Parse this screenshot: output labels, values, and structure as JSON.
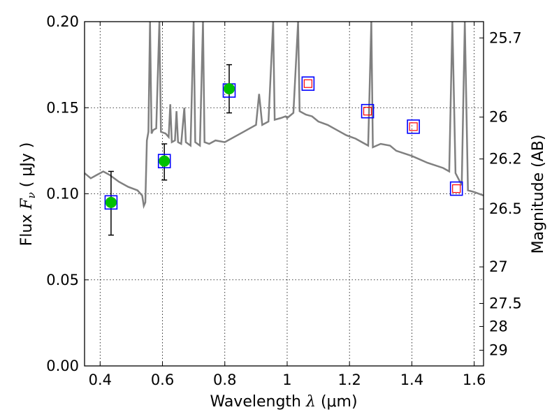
{
  "chart_data": {
    "type": "scatter",
    "xlabel_prefix": "Wavelength",
    "xlabel_symbol": "λ",
    "xlabel_unit": "(μm)",
    "ylabel_prefix": "Flux",
    "ylabel_symbol": "F",
    "ylabel_subscript": "ν",
    "ylabel_unit": "( μJy )",
    "y2label": "Magnitude (AB)",
    "xlim": [
      0.35,
      1.63
    ],
    "ylim": [
      0.0,
      0.2
    ],
    "grid": true,
    "x_ticks": [
      0.4,
      0.6,
      0.8,
      1.0,
      1.2,
      1.4,
      1.6
    ],
    "x_tick_labels": [
      "0.4",
      "0.6",
      "0.8",
      "1",
      "1.2",
      "1.4",
      "1.6"
    ],
    "y_ticks": [
      0.0,
      0.05,
      0.1,
      0.15,
      0.2
    ],
    "y_tick_labels": [
      "0.00",
      "0.05",
      "0.10",
      "0.15",
      "0.20"
    ],
    "y2_ticks": [
      {
        "label": "25.7",
        "mag": 25.7
      },
      {
        "label": "26",
        "mag": 26.0
      },
      {
        "label": "26.2",
        "mag": 26.2
      },
      {
        "label": "26.5",
        "mag": 26.5
      },
      {
        "label": "27",
        "mag": 27.0
      },
      {
        "label": "27.5",
        "mag": 27.5
      },
      {
        "label": "28",
        "mag": 28.0
      },
      {
        "label": "29",
        "mag": 29.0
      }
    ],
    "colors": {
      "model": "#808080",
      "observed": "#00c000",
      "synthetic": "#0000ff",
      "predicted": "#ff0000",
      "errorbar": "#000000"
    },
    "observed_points": [
      {
        "x": 0.435,
        "y": 0.095,
        "yerr_low": 0.076,
        "yerr_high": 0.113
      },
      {
        "x": 0.606,
        "y": 0.119,
        "yerr_low": 0.108,
        "yerr_high": 0.129
      },
      {
        "x": 0.814,
        "y": 0.161,
        "yerr_low": 0.147,
        "yerr_high": 0.175
      }
    ],
    "synthetic_points": [
      {
        "x": 0.435,
        "y": 0.095
      },
      {
        "x": 0.606,
        "y": 0.119
      },
      {
        "x": 0.814,
        "y": 0.16
      },
      {
        "x": 1.067,
        "y": 0.164
      },
      {
        "x": 1.258,
        "y": 0.148
      },
      {
        "x": 1.405,
        "y": 0.139
      },
      {
        "x": 1.543,
        "y": 0.103
      }
    ],
    "predicted_points": [
      {
        "x": 1.067,
        "y": 0.164
      },
      {
        "x": 1.258,
        "y": 0.148
      },
      {
        "x": 1.405,
        "y": 0.139
      },
      {
        "x": 1.543,
        "y": 0.103
      }
    ],
    "model_spectrum": [
      [
        0.35,
        0.112
      ],
      [
        0.37,
        0.109
      ],
      [
        0.39,
        0.111
      ],
      [
        0.41,
        0.113
      ],
      [
        0.43,
        0.111
      ],
      [
        0.46,
        0.107
      ],
      [
        0.49,
        0.104
      ],
      [
        0.52,
        0.102
      ],
      [
        0.535,
        0.099
      ],
      [
        0.54,
        0.093
      ],
      [
        0.545,
        0.095
      ],
      [
        0.55,
        0.131
      ],
      [
        0.555,
        0.136
      ],
      [
        0.56,
        0.2
      ],
      [
        0.565,
        0.135
      ],
      [
        0.57,
        0.137
      ],
      [
        0.58,
        0.138
      ],
      [
        0.59,
        0.2
      ],
      [
        0.595,
        0.136
      ],
      [
        0.61,
        0.135
      ],
      [
        0.62,
        0.133
      ],
      [
        0.625,
        0.152
      ],
      [
        0.63,
        0.13
      ],
      [
        0.64,
        0.131
      ],
      [
        0.645,
        0.148
      ],
      [
        0.65,
        0.13
      ],
      [
        0.66,
        0.129
      ],
      [
        0.67,
        0.15
      ],
      [
        0.675,
        0.13
      ],
      [
        0.69,
        0.128
      ],
      [
        0.7,
        0.2
      ],
      [
        0.705,
        0.13
      ],
      [
        0.72,
        0.128
      ],
      [
        0.73,
        0.2
      ],
      [
        0.735,
        0.13
      ],
      [
        0.75,
        0.129
      ],
      [
        0.77,
        0.131
      ],
      [
        0.8,
        0.13
      ],
      [
        0.83,
        0.133
      ],
      [
        0.86,
        0.136
      ],
      [
        0.88,
        0.138
      ],
      [
        0.9,
        0.14
      ],
      [
        0.91,
        0.158
      ],
      [
        0.92,
        0.14
      ],
      [
        0.94,
        0.142
      ],
      [
        0.955,
        0.2
      ],
      [
        0.96,
        0.143
      ],
      [
        0.98,
        0.144
      ],
      [
        0.995,
        0.145
      ],
      [
        1.0,
        0.144
      ],
      [
        1.02,
        0.147
      ],
      [
        1.035,
        0.2
      ],
      [
        1.04,
        0.148
      ],
      [
        1.06,
        0.146
      ],
      [
        1.08,
        0.145
      ],
      [
        1.1,
        0.142
      ],
      [
        1.13,
        0.14
      ],
      [
        1.16,
        0.137
      ],
      [
        1.19,
        0.134
      ],
      [
        1.22,
        0.132
      ],
      [
        1.24,
        0.13
      ],
      [
        1.26,
        0.128
      ],
      [
        1.27,
        0.2
      ],
      [
        1.275,
        0.127
      ],
      [
        1.3,
        0.129
      ],
      [
        1.33,
        0.128
      ],
      [
        1.35,
        0.125
      ],
      [
        1.4,
        0.122
      ],
      [
        1.45,
        0.118
      ],
      [
        1.5,
        0.115
      ],
      [
        1.52,
        0.113
      ],
      [
        1.53,
        0.2
      ],
      [
        1.54,
        0.112
      ],
      [
        1.56,
        0.105
      ],
      [
        1.57,
        0.2
      ],
      [
        1.58,
        0.102
      ],
      [
        1.6,
        0.101
      ],
      [
        1.63,
        0.099
      ]
    ]
  }
}
